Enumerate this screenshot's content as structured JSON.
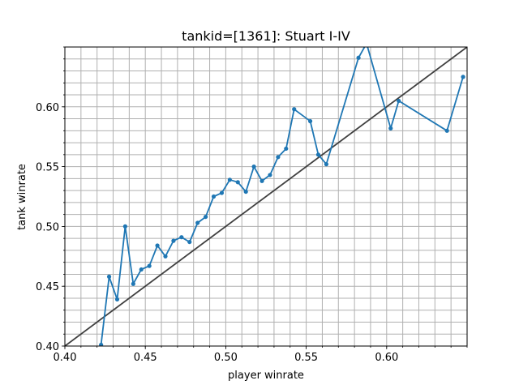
{
  "chart_data": {
    "type": "line",
    "title": "tankid=[1361]: Stuart I-IV",
    "xlabel": "player winrate",
    "ylabel": "tank winrate",
    "xlim": [
      0.4,
      0.65
    ],
    "ylim": [
      0.4,
      0.65
    ],
    "grid": true,
    "x_major_ticks": [
      0.4,
      0.45,
      0.5,
      0.55,
      0.6
    ],
    "x_tick_labels": [
      "0.40",
      "0.45",
      "0.50",
      "0.55",
      "0.60"
    ],
    "y_major_ticks": [
      0.4,
      0.45,
      0.5,
      0.55,
      0.6
    ],
    "y_tick_labels": [
      "0.40",
      "0.45",
      "0.50",
      "0.55",
      "0.60"
    ],
    "minor_step": 0.01,
    "series": [
      {
        "name": "tank winrate",
        "color": "#1f77b4",
        "marker": "dot",
        "x": [
          0.4225,
          0.4275,
          0.4325,
          0.4375,
          0.4425,
          0.4475,
          0.4525,
          0.4575,
          0.4625,
          0.4675,
          0.4725,
          0.4775,
          0.4825,
          0.4875,
          0.4925,
          0.4975,
          0.5025,
          0.5075,
          0.5125,
          0.5175,
          0.5225,
          0.5275,
          0.5325,
          0.5375,
          0.5425,
          0.5525,
          0.5575,
          0.5625,
          0.5825,
          0.5875,
          0.6025,
          0.6075,
          0.6375,
          0.6475
        ],
        "y": [
          0.401,
          0.458,
          0.439,
          0.5,
          0.452,
          0.464,
          0.467,
          0.484,
          0.475,
          0.488,
          0.491,
          0.487,
          0.503,
          0.508,
          0.525,
          0.528,
          0.539,
          0.537,
          0.529,
          0.55,
          0.538,
          0.543,
          0.558,
          0.565,
          0.598,
          0.588,
          0.56,
          0.552,
          0.641,
          0.653,
          0.582,
          0.605,
          0.58,
          0.625
        ]
      },
      {
        "name": "reference y=x",
        "color": "#404040",
        "x": [
          0.4,
          0.65
        ],
        "y": [
          0.4,
          0.65
        ]
      }
    ]
  }
}
